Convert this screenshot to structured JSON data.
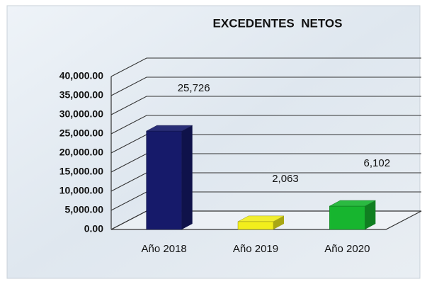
{
  "chart_data": {
    "type": "bar3d",
    "title": "EXCEDENTES  NETOS",
    "categories": [
      "Año 2018",
      "Año 2019",
      "Año 2020"
    ],
    "values": [
      25726,
      2063,
      6102
    ],
    "value_labels": [
      "25,726",
      "2,063",
      "6,102"
    ],
    "colors": [
      "#161a6a",
      "#f2ee1c",
      "#17b52f"
    ],
    "ylim": [
      0,
      40000
    ],
    "yticks": [
      {
        "value": 0,
        "label": "0.00"
      },
      {
        "value": 5000,
        "label": "5,000.00"
      },
      {
        "value": 10000,
        "label": "10,000.00"
      },
      {
        "value": 15000,
        "label": "15,000.00"
      },
      {
        "value": 20000,
        "label": "20,000.00"
      },
      {
        "value": 25000,
        "label": "25,000.00"
      },
      {
        "value": 30000,
        "label": "30,000.00"
      },
      {
        "value": 35000,
        "label": "35,000.00"
      },
      {
        "value": 40000,
        "label": "40,000.00"
      }
    ],
    "grid": true
  }
}
